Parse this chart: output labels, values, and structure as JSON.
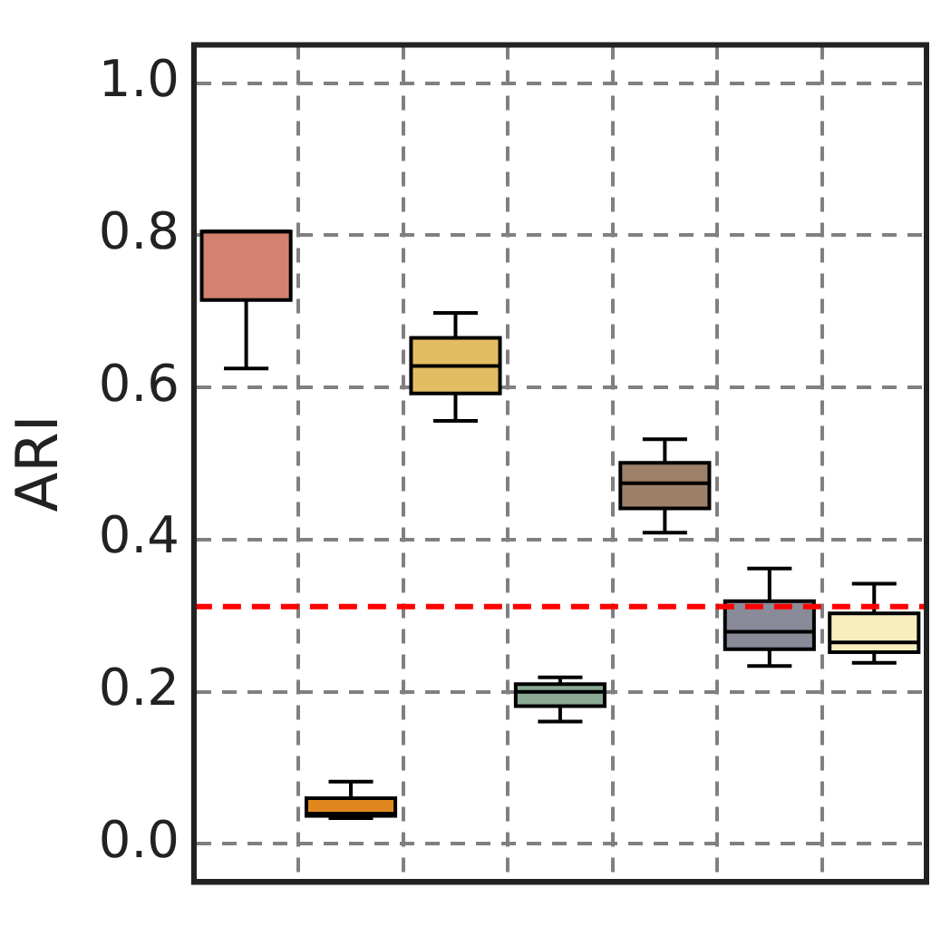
{
  "chart_data": {
    "type": "box",
    "ylabel": "ARI",
    "categories": [
      null,
      null,
      null,
      null,
      null,
      null,
      null
    ],
    "colors": [
      "#d4826f",
      "#e0881e",
      "#e3bd62",
      "#8aaa95",
      "#9c8068",
      "#8a8b98",
      "#f7edbd"
    ],
    "boxes": [
      {
        "low": 0.625,
        "q1": 0.715,
        "median": 0.805,
        "q3": 0.805,
        "high": 0.805
      },
      {
        "low": 0.034,
        "q1": 0.037,
        "median": 0.04,
        "q3": 0.06,
        "high": 0.082
      },
      {
        "low": 0.556,
        "q1": 0.592,
        "median": 0.628,
        "q3": 0.665,
        "high": 0.698
      },
      {
        "low": 0.161,
        "q1": 0.181,
        "median": 0.2,
        "q3": 0.21,
        "high": 0.219
      },
      {
        "low": 0.409,
        "q1": 0.441,
        "median": 0.474,
        "q3": 0.501,
        "high": 0.532
      },
      {
        "low": 0.234,
        "q1": 0.256,
        "median": 0.279,
        "q3": 0.319,
        "high": 0.362
      },
      {
        "low": 0.238,
        "q1": 0.252,
        "median": 0.265,
        "q3": 0.303,
        "high": 0.342
      }
    ],
    "ylim": [
      -0.05,
      1.05
    ],
    "yticks": [
      {
        "value": 0,
        "label": "0.0"
      },
      0.2,
      0.4,
      0.6,
      0.8,
      {
        "value": 1,
        "label": "1.0"
      }
    ],
    "ref_lines": [
      {
        "axis": "y",
        "value": 0.312,
        "color": "#ff0000",
        "line_style": "dashed"
      }
    ],
    "grid": true,
    "tick_labels": "y",
    "legend": false
  }
}
